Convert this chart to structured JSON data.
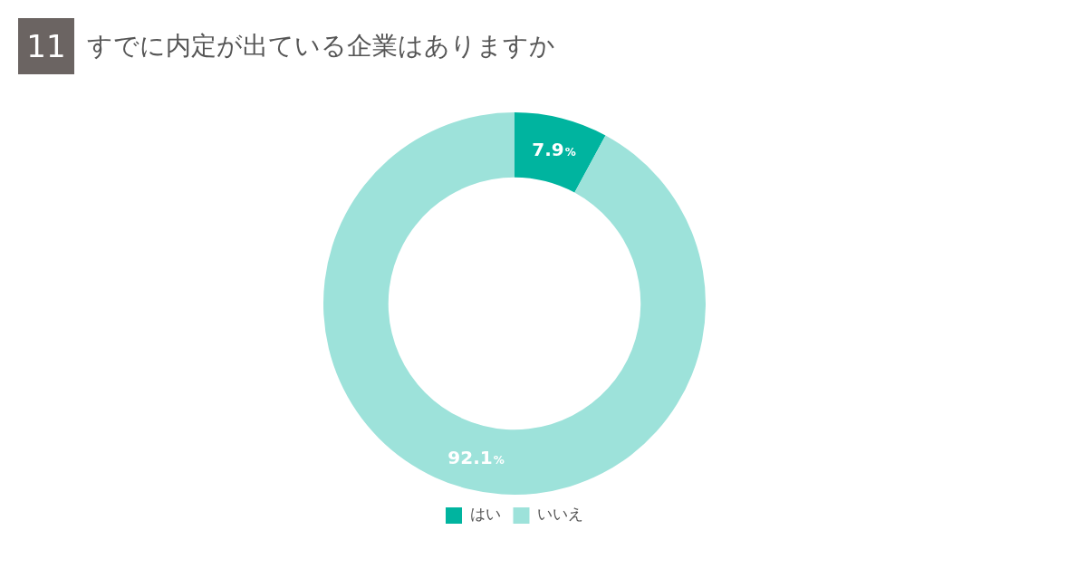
{
  "chart_data": {
    "type": "donut",
    "title": "すでに内定が出ている企業はありますか",
    "annotations": [
      "11"
    ],
    "categories": [
      "はい",
      "いいえ"
    ],
    "values": [
      7.9,
      92.1
    ],
    "colors": [
      "#00b49f",
      "#9de2da"
    ],
    "value_labels": [
      "7.9%",
      "92.1%"
    ],
    "legend": "bottom"
  }
}
